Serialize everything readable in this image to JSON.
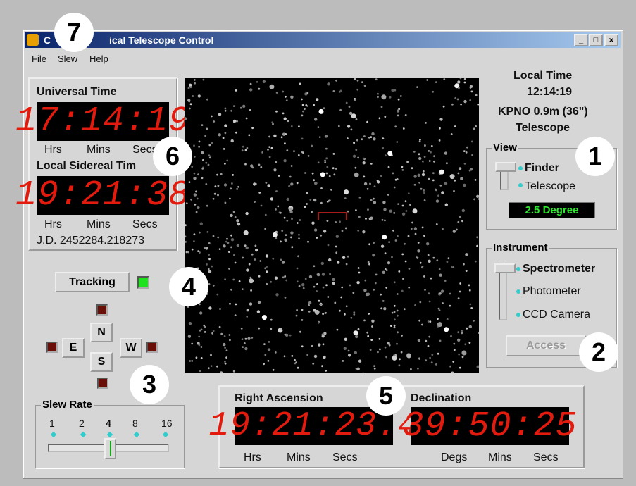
{
  "window": {
    "title_start": "C",
    "title_end": "ical Telescope Control"
  },
  "menu": [
    "File",
    "Slew",
    "Help"
  ],
  "universal_time": {
    "label": "Universal Time",
    "display": "17:14:19",
    "units": [
      "Hrs",
      "Mins",
      "Secs"
    ]
  },
  "sidereal_time": {
    "label": "Local Sidereal Tim",
    "display": "19:21:38",
    "units": [
      "Hrs",
      "Mins",
      "Secs"
    ],
    "julian_date": "J.D. 2452284.218273"
  },
  "tracking": {
    "button": "Tracking"
  },
  "directions": {
    "north": "N",
    "east": "E",
    "west": "W",
    "south": "S"
  },
  "slew_rate": {
    "label": "Slew Rate",
    "rates": [
      "1",
      "2",
      "4",
      "8",
      "16"
    ]
  },
  "local_time": {
    "label": "Local Time",
    "value": "12:14:19",
    "telescope_line1": "KPNO 0.9m (36\")",
    "telescope_line2": "Telescope"
  },
  "view": {
    "label": "View",
    "options": [
      "Finder",
      "Telescope"
    ],
    "field": "2.5 Degree"
  },
  "instrument": {
    "label": "Instrument",
    "options": [
      "Spectrometer",
      "Photometer",
      "CCD Camera"
    ],
    "button": "Access"
  },
  "coordinates": {
    "ra_label": "Right Ascension",
    "ra_display": "19:21:23.4",
    "ra_units": [
      "Hrs",
      "Mins",
      "Secs"
    ],
    "dec_label": "Declination",
    "dec_display": "39:50:25",
    "dec_units": [
      "Degs",
      "Mins",
      "Secs"
    ]
  },
  "callouts": [
    "1",
    "2",
    "3",
    "4",
    "5",
    "6",
    "7"
  ]
}
